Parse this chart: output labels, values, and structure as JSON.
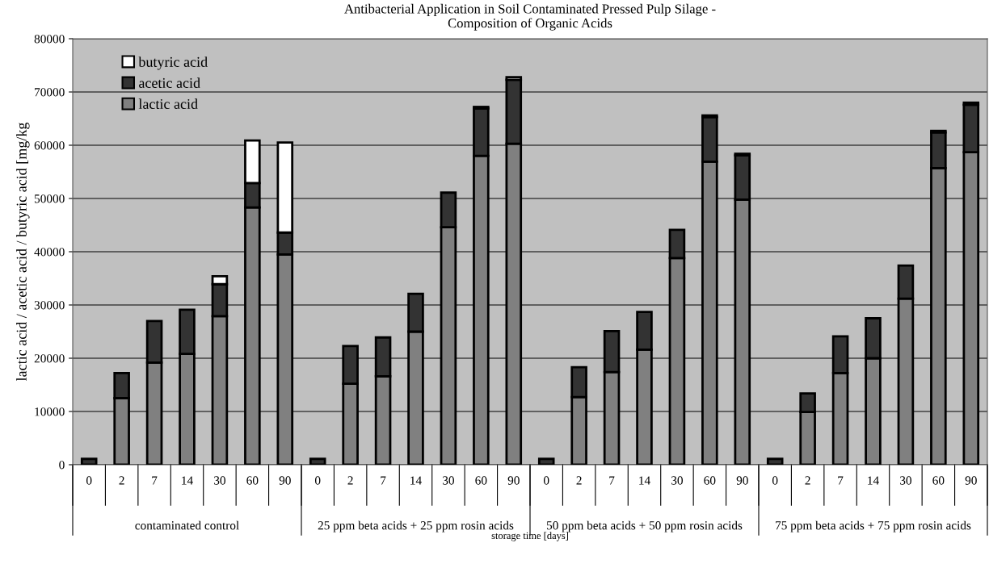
{
  "chart_data": {
    "type": "bar",
    "stacked": true,
    "title": "Antibacterial Application in Soil Contaminated Pressed Pulp Silage -\nComposition of Organic Acids",
    "xlabel": "storage time [days]",
    "ylabel": "lactic acid / acetic acid / butyric acid [mg/kg",
    "categories": [
      "0",
      "2",
      "7",
      "14",
      "30",
      "60",
      "90",
      "0",
      "2",
      "7",
      "14",
      "30",
      "60",
      "90",
      "0",
      "2",
      "7",
      "14",
      "30",
      "60",
      "90",
      "0",
      "2",
      "7",
      "14",
      "30",
      "60",
      "90"
    ],
    "annotations": [
      "contaminated control",
      "25 ppm beta acids + 25 ppm rosin acids",
      "50 ppm beta acids + 50 ppm rosin acids",
      "75 ppm beta acids + 75 ppm rosin acids"
    ],
    "series": [
      {
        "name": "lactic acid",
        "color": "#808080",
        "values": [
          null,
          12500,
          19200,
          20800,
          27900,
          48300,
          39500,
          null,
          15200,
          16600,
          25000,
          44600,
          58000,
          60300,
          null,
          12700,
          17400,
          21600,
          38800,
          56900,
          49800,
          null,
          9900,
          17200,
          20000,
          31200,
          55700,
          58700
        ]
      },
      {
        "name": "acetic acid",
        "color": "#333333",
        "values": [
          1100,
          4700,
          7800,
          8300,
          6000,
          4600,
          4100,
          1100,
          7100,
          7300,
          7100,
          6500,
          8900,
          12000,
          1100,
          5600,
          7700,
          7100,
          5300,
          8400,
          8300,
          1100,
          3500,
          6900,
          7500,
          6200,
          6700,
          8900
        ]
      },
      {
        "name": "butyric acid",
        "color": "#ffffff",
        "values": [
          null,
          null,
          null,
          null,
          1500,
          8000,
          16900,
          null,
          null,
          null,
          null,
          null,
          300,
          500,
          null,
          null,
          null,
          null,
          null,
          300,
          300,
          null,
          null,
          null,
          null,
          null,
          300,
          400
        ]
      }
    ],
    "ylim": [
      0,
      80000
    ],
    "yticks": [
      0,
      10000,
      20000,
      30000,
      40000,
      50000,
      60000,
      70000,
      80000
    ],
    "grid": "y",
    "legend": "top left"
  }
}
